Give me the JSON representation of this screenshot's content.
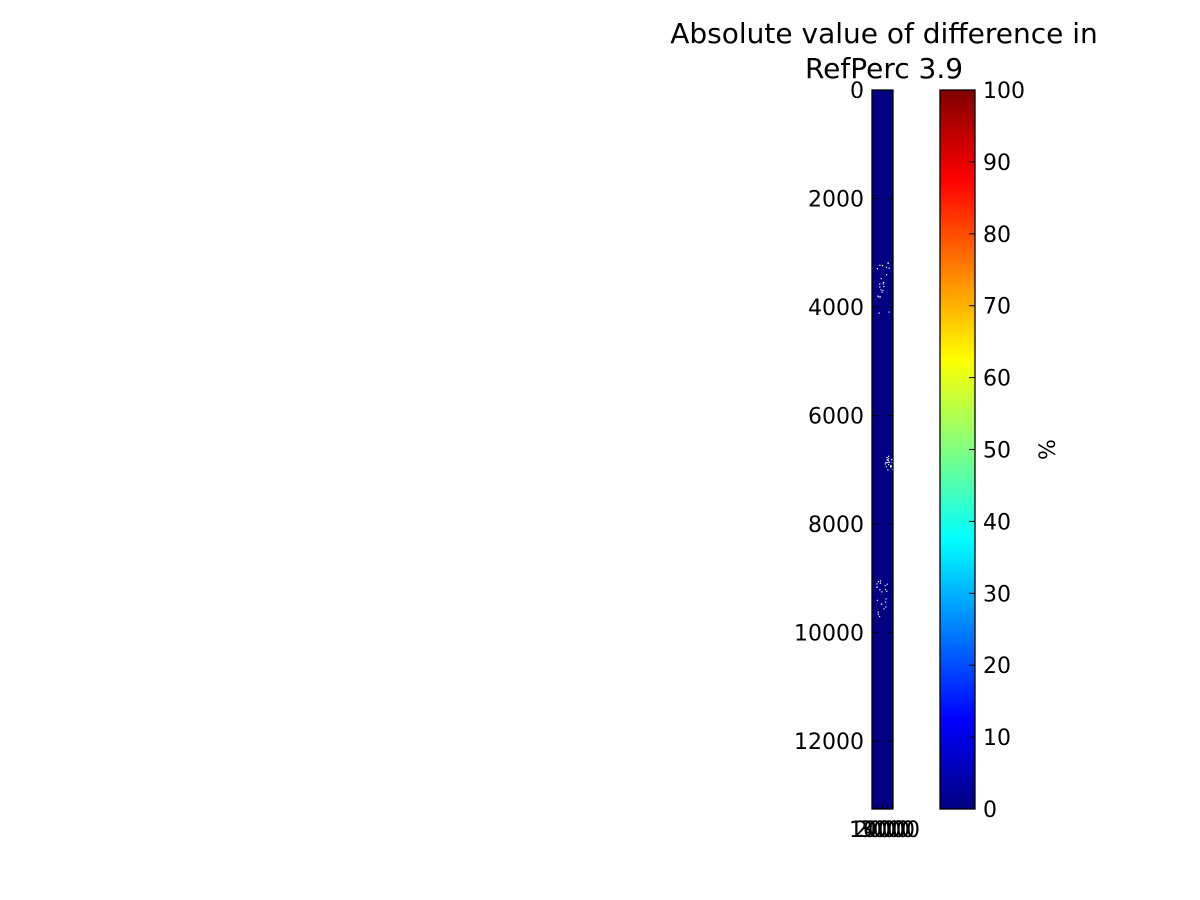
{
  "chart_data": {
    "type": "heatmap",
    "title_lines": [
      "Absolute value of difference in",
      "RefPerc 3.9"
    ],
    "y_ticks": [
      "0",
      "2000",
      "4000",
      "6000",
      "8000",
      "10000",
      "12000"
    ],
    "y_tick_values": [
      0,
      2000,
      4000,
      6000,
      8000,
      10000,
      12000
    ],
    "ylim": [
      0,
      13250
    ],
    "y_inverted": true,
    "x_tick_labels": [
      "1000",
      "2000",
      "3000",
      "4000"
    ],
    "background_value": 0,
    "background_color": "#000080",
    "missing_color": "#ffffff",
    "colormap": "jet",
    "colorbar": {
      "label": "%",
      "min": 0,
      "max": 100,
      "ticks": [
        "0",
        "10",
        "20",
        "30",
        "40",
        "50",
        "60",
        "70",
        "80",
        "90",
        "100"
      ],
      "tick_values": [
        0,
        10,
        20,
        30,
        40,
        50,
        60,
        70,
        80,
        90,
        100
      ],
      "stops": [
        "#000080",
        "#0000ff",
        "#0080ff",
        "#00ffff",
        "#80ff80",
        "#ffff00",
        "#ff8000",
        "#ff0000",
        "#800000"
      ]
    }
  }
}
